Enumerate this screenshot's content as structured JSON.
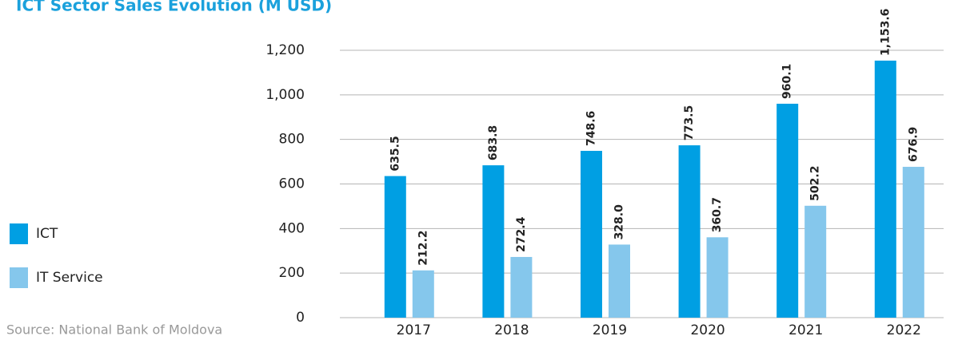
{
  "chart_data": {
    "type": "bar",
    "title": "ICT Sector Sales Evolution (M USD)",
    "source": "Source: National Bank of Moldova",
    "categories": [
      "2017",
      "2018",
      "2019",
      "2020",
      "2021",
      "2022"
    ],
    "series": [
      {
        "name": "ICT",
        "color": "#009fe3",
        "values": [
          635.5,
          683.8,
          748.6,
          773.5,
          960.1,
          1153.6
        ],
        "value_labels": [
          "635.5",
          "683.8",
          "748.6",
          "773.5",
          "960.1",
          "1,153.6"
        ]
      },
      {
        "name": "IT Service",
        "color": "#85c7ec",
        "values": [
          212.2,
          272.4,
          328.0,
          360.7,
          502.2,
          676.9
        ],
        "value_labels": [
          "212.2",
          "272.4",
          "328.0",
          "360.7",
          "502.2",
          "676.9"
        ]
      }
    ],
    "ylim": [
      0,
      1200
    ],
    "yticks": [
      0,
      200,
      400,
      600,
      800,
      {
        "value": 1000,
        "label": "1,000"
      },
      {
        "value": 1200,
        "label": "1,200"
      }
    ],
    "grid": true
  }
}
